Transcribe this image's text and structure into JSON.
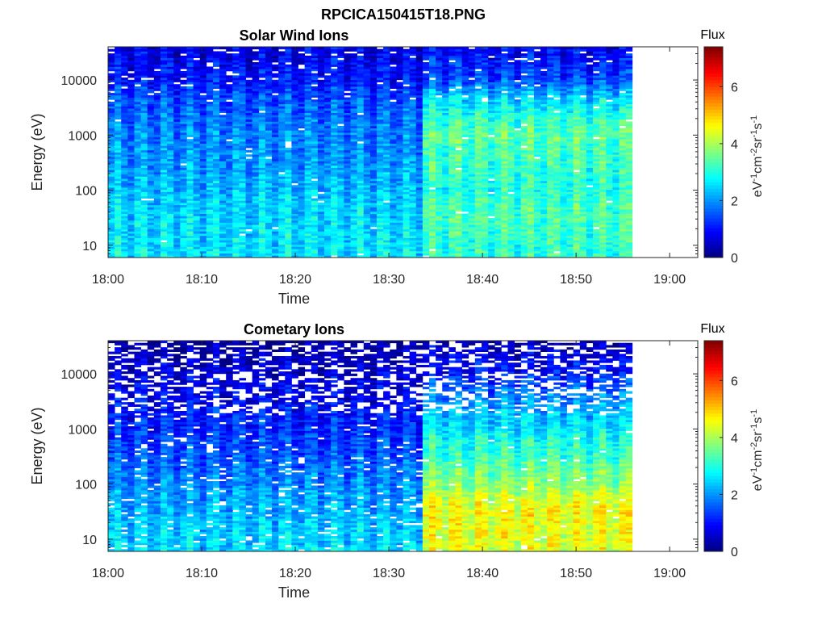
{
  "figure": {
    "title": "RPCICA150415T18.PNG"
  },
  "chart_data": [
    {
      "type": "heatmap",
      "title": "Solar Wind Ions",
      "xlabel": "Time",
      "ylabel": "Energy (eV)",
      "x_ticks": [
        "18:00",
        "18:10",
        "18:20",
        "18:30",
        "18:40",
        "18:50",
        "19:00"
      ],
      "x_range": [
        "18:00",
        "19:03"
      ],
      "data_end": "18:56",
      "y_scale": "log",
      "y_ticks": [
        "10",
        "100",
        "1000",
        "10000"
      ],
      "y_range": [
        6,
        40000
      ],
      "colorbar": {
        "title": "Flux",
        "label": "eV-1cm-2sr-1s-1",
        "label_parts": [
          {
            "t": "eV",
            "sup": false
          },
          {
            "t": "-1",
            "sup": true
          },
          {
            "t": "cm",
            "sup": false
          },
          {
            "t": "-2",
            "sup": true
          },
          {
            "t": "sr",
            "sup": false
          },
          {
            "t": "-1",
            "sup": true
          },
          {
            "t": "s",
            "sup": false
          },
          {
            "t": "-1",
            "sup": true
          }
        ],
        "ticks": [
          "0",
          "2",
          "4",
          "6"
        ],
        "range": [
          0,
          7.4
        ],
        "colormap": "jet"
      },
      "flux_profile": {
        "energy_eV": [
          8,
          30,
          100,
          300,
          1000,
          3000,
          10000,
          30000
        ],
        "before_18_33": [
          2.6,
          2.5,
          2.3,
          2.0,
          1.9,
          1.6,
          1.0,
          0.8
        ],
        "after_18_33": [
          3.1,
          3.3,
          3.0,
          3.2,
          3.4,
          2.8,
          1.4,
          0.9
        ]
      }
    },
    {
      "type": "heatmap",
      "title": "Cometary Ions",
      "xlabel": "Time",
      "ylabel": "Energy (eV)",
      "x_ticks": [
        "18:00",
        "18:10",
        "18:20",
        "18:30",
        "18:40",
        "18:50",
        "19:00"
      ],
      "x_range": [
        "18:00",
        "19:03"
      ],
      "data_end": "18:56",
      "y_scale": "log",
      "y_ticks": [
        "10",
        "100",
        "1000",
        "10000"
      ],
      "y_range": [
        6,
        40000
      ],
      "colorbar": {
        "title": "Flux",
        "label": "eV-1cm-2sr-1s-1",
        "label_parts": [
          {
            "t": "eV",
            "sup": false
          },
          {
            "t": "-1",
            "sup": true
          },
          {
            "t": "cm",
            "sup": false
          },
          {
            "t": "-2",
            "sup": true
          },
          {
            "t": "sr",
            "sup": false
          },
          {
            "t": "-1",
            "sup": true
          },
          {
            "t": "s",
            "sup": false
          },
          {
            "t": "-1",
            "sup": true
          }
        ],
        "ticks": [
          "0",
          "2",
          "4",
          "6"
        ],
        "range": [
          0,
          7.4
        ],
        "colormap": "jet"
      },
      "flux_profile": {
        "energy_eV": [
          8,
          30,
          100,
          300,
          1000,
          3000,
          10000,
          30000
        ],
        "before_18_33": [
          2.5,
          2.2,
          1.9,
          1.5,
          1.2,
          0.9,
          0.6,
          0.3
        ],
        "after_18_33": [
          4.4,
          4.6,
          3.8,
          3.2,
          2.6,
          2.0,
          1.0,
          0.5
        ]
      }
    }
  ]
}
